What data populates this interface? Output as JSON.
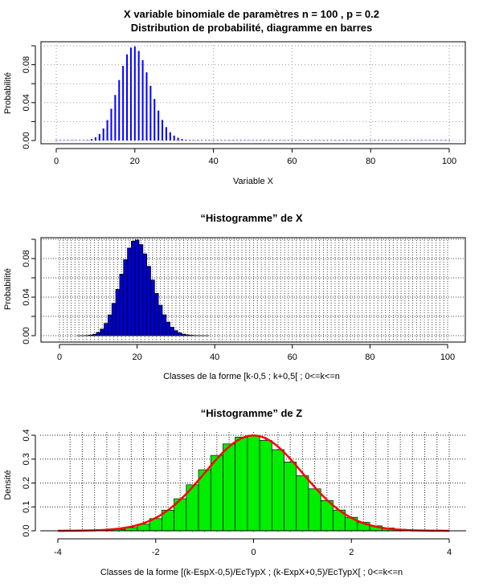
{
  "colors": {
    "binom_bars": "#0000ff",
    "hist_fill": "#0000cc",
    "z_fill": "#00ee00",
    "normal_curve": "#ff0000",
    "grid": "#999999"
  },
  "chart_data": [
    {
      "type": "bar",
      "title_line1": "X variable binomiale de paramètres n = 100 , p = 0.2",
      "title_line2": "Distribution de probabilité, diagramme en barres",
      "xlabel": "Variable X",
      "ylabel": "Probabilité",
      "xlim": [
        0,
        100
      ],
      "ylim": [
        0,
        0.1
      ],
      "xticks": [
        0,
        20,
        40,
        60,
        80,
        100
      ],
      "yticks": [
        0.0,
        0.04,
        0.08
      ],
      "ytick_labels": [
        "0.00",
        "0.04",
        "0.08"
      ],
      "grid": true,
      "binomial": {
        "n": 100,
        "p": 0.2
      }
    },
    {
      "type": "bar",
      "title": "“Histogramme” de X",
      "xlabel": "Classes de la forme [k-0,5 ; k+0,5[ ; 0<=k<=n",
      "ylabel": "Probabilité",
      "xlim": [
        0,
        100
      ],
      "ylim": [
        0,
        0.1
      ],
      "xticks": [
        0,
        20,
        40,
        60,
        80,
        100
      ],
      "yticks": [
        0.0,
        0.04,
        0.08
      ],
      "ytick_labels": [
        "0.00",
        "0.04",
        "0.08"
      ],
      "grid": true,
      "binomial": {
        "n": 100,
        "p": 0.2
      }
    },
    {
      "type": "bar",
      "title": "“Histogramme” de Z",
      "xlabel": "Classes de la forme [(k-EspX-0,5)/EcTypX ; (k-ExpX+0,5)/EcTypX[ ; 0<=k<=n",
      "ylabel": "Densité",
      "xlim": [
        -4,
        4
      ],
      "ylim": [
        0,
        0.4
      ],
      "xticks": [
        -4,
        -2,
        0,
        2,
        4
      ],
      "yticks": [
        0.0,
        0.1,
        0.2,
        0.3,
        0.4
      ],
      "ytick_labels": [
        "0.0",
        "0.1",
        "0.2",
        "0.3",
        "0.4"
      ],
      "grid": true,
      "binomial": {
        "n": 100,
        "p": 0.2
      },
      "overlay": "normal density N(0,1)"
    }
  ]
}
